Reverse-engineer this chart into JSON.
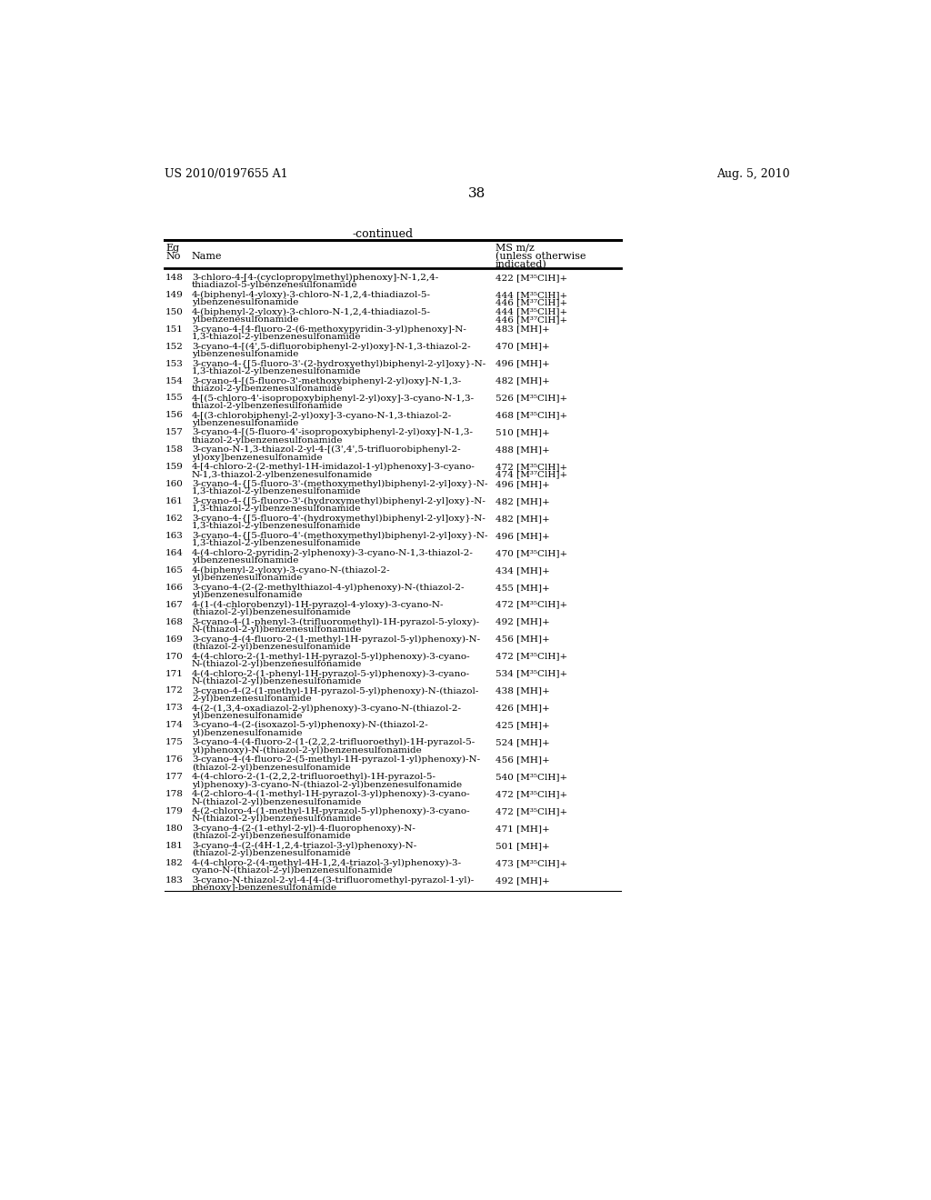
{
  "header_left": "US 2010/0197655 A1",
  "header_right": "Aug. 5, 2010",
  "page_number": "38",
  "continued_label": "-continued",
  "rows": [
    [
      "148",
      "3-chloro-4-[4-(cyclopropylmethyl)phenoxy]-N-1,2,4-\nthiadiazol-5-ylbenzenesulfonamide",
      "422 [M³⁵ClH]+"
    ],
    [
      "149",
      "4-(biphenyl-4-yloxy)-3-chloro-N-1,2,4-thiadiazol-5-\nylbenzenesulfonamide",
      "444 [M³⁵ClH]+\n446 [M³⁷ClH]+"
    ],
    [
      "150",
      "4-(biphenyl-2-yloxy)-3-chloro-N-1,2,4-thiadiazol-5-\nylbenzenesulfonamide",
      "444 [M³⁵ClH]+\n446 [M³⁷ClH]+"
    ],
    [
      "151",
      "3-cyano-4-[4-fluoro-2-(6-methoxypyridin-3-yl)phenoxy]-N-\n1,3-thiazol-2-ylbenzenesulfonamide",
      "483 [MH]+"
    ],
    [
      "152",
      "3-cyano-4-[(4',5-difluorobiphenyl-2-yl)oxy]-N-1,3-thiazol-2-\nylbenzenesulfonamide",
      "470 [MH]+"
    ],
    [
      "153",
      "3-cyano-4-{[5-fluoro-3'-(2-hydroxyethyl)biphenyl-2-yl]oxy}-N-\n1,3-thiazol-2-ylbenzenesulfonamide",
      "496 [MH]+"
    ],
    [
      "154",
      "3-cyano-4-[(5-fluoro-3'-methoxybiphenyl-2-yl)oxy]-N-1,3-\nthiazol-2-ylbenzenesulfonamide",
      "482 [MH]+"
    ],
    [
      "155",
      "4-[(5-chloro-4'-isopropoxybiphenyl-2-yl)oxy]-3-cyano-N-1,3-\nthiazol-2-ylbenzenesulfonamide",
      "526 [M³⁵ClH]+"
    ],
    [
      "156",
      "4-[(3-chlorobiphenyl-2-yl)oxy]-3-cyano-N-1,3-thiazol-2-\nylbenzenesulfonamide",
      "468 [M³⁵ClH]+"
    ],
    [
      "157",
      "3-cyano-4-[(5-fluoro-4'-isopropoxybiphenyl-2-yl)oxy]-N-1,3-\nthiazol-2-ylbenzenesulfonamide",
      "510 [MH]+"
    ],
    [
      "158",
      "3-cyano-N-1,3-thiazol-2-yl-4-[(3',4',5-trifluorobiphenyl-2-\nyl)oxy]benzenesulfonamide",
      "488 [MH]+"
    ],
    [
      "159",
      "4-[4-chloro-2-(2-methyl-1H-imidazol-1-yl)phenoxy]-3-cyano-\nN-1,3-thiazol-2-ylbenzenesulfonamide",
      "472 [M³⁵ClH]+\n474 [M³⁷ClH]+"
    ],
    [
      "160",
      "3-cyano-4-{[5-fluoro-3'-(methoxymethyl)biphenyl-2-yl]oxy}-N-\n1,3-thiazol-2-ylbenzenesulfonamide",
      "496 [MH]+"
    ],
    [
      "161",
      "3-cyano-4-{[5-fluoro-3'-(hydroxymethyl)biphenyl-2-yl]oxy}-N-\n1,3-thiazol-2-ylbenzenesulfonamide",
      "482 [MH]+"
    ],
    [
      "162",
      "3-cyano-4-{[5-fluoro-4'-(hydroxymethyl)biphenyl-2-yl]oxy}-N-\n1,3-thiazol-2-ylbenzenesulfonamide",
      "482 [MH]+"
    ],
    [
      "163",
      "3-cyano-4-{[5-fluoro-4'-(methoxymethyl)biphenyl-2-yl]oxy}-N-\n1,3-thiazol-2-ylbenzenesulfonamide",
      "496 [MH]+"
    ],
    [
      "164",
      "4-(4-chloro-2-pyridin-2-ylphenoxy)-3-cyano-N-1,3-thiazol-2-\nylbenzenesulfonamide",
      "470 [M³⁵ClH]+"
    ],
    [
      "165",
      "4-(biphenyl-2-yloxy)-3-cyano-N-(thiazol-2-\nyl)benzenesulfonamide",
      "434 [MH]+"
    ],
    [
      "166",
      "3-cyano-4-(2-(2-methylthiazol-4-yl)phenoxy)-N-(thiazol-2-\nyl)benzenesulfonamide",
      "455 [MH]+"
    ],
    [
      "167",
      "4-(1-(4-chlorobenzyl)-1H-pyrazol-4-yloxy)-3-cyano-N-\n(thiazol-2-yl)benzenesulfonamide",
      "472 [M³⁵ClH]+"
    ],
    [
      "168",
      "3-cyano-4-(1-phenyl-3-(trifluoromethyl)-1H-pyrazol-5-yloxy)-\nN-(thiazol-2-yl)benzenesulfonamide",
      "492 [MH]+"
    ],
    [
      "169",
      "3-cyano-4-(4-fluoro-2-(1-methyl-1H-pyrazol-5-yl)phenoxy)-N-\n(thiazol-2-yl)benzenesulfonamide",
      "456 [MH]+"
    ],
    [
      "170",
      "4-(4-chloro-2-(1-methyl-1H-pyrazol-5-yl)phenoxy)-3-cyano-\nN-(thiazol-2-yl)benzenesulfonamide",
      "472 [M³⁵ClH]+"
    ],
    [
      "171",
      "4-(4-chloro-2-(1-phenyl-1H-pyrazol-5-yl)phenoxy)-3-cyano-\nN-(thiazol-2-yl)benzenesulfonamide",
      "534 [M³⁵ClH]+"
    ],
    [
      "172",
      "3-cyano-4-(2-(1-methyl-1H-pyrazol-5-yl)phenoxy)-N-(thiazol-\n2-yl)benzenesulfonamide",
      "438 [MH]+"
    ],
    [
      "173",
      "4-(2-(1,3,4-oxadiazol-2-yl)phenoxy)-3-cyano-N-(thiazol-2-\nyl)benzenesulfonamide",
      "426 [MH]+"
    ],
    [
      "174",
      "3-cyano-4-(2-(isoxazol-5-yl)phenoxy)-N-(thiazol-2-\nyl)benzenesulfonamide",
      "425 [MH]+"
    ],
    [
      "175",
      "3-cyano-4-(4-fluoro-2-(1-(2,2,2-trifluoroethyl)-1H-pyrazol-5-\nyl)phenoxy)-N-(thiazol-2-yl)benzenesulfonamide",
      "524 [MH]+"
    ],
    [
      "176",
      "3-cyano-4-(4-fluoro-2-(5-methyl-1H-pyrazol-1-yl)phenoxy)-N-\n(thiazol-2-yl)benzenesulfonamide",
      "456 [MH]+"
    ],
    [
      "177",
      "4-(4-chloro-2-(1-(2,2,2-trifluoroethyl)-1H-pyrazol-5-\nyl)phenoxy)-3-cyano-N-(thiazol-2-yl)benzenesulfonamide",
      "540 [M³⁵ClH]+"
    ],
    [
      "178",
      "4-(2-chloro-4-(1-methyl-1H-pyrazol-3-yl)phenoxy)-3-cyano-\nN-(thiazol-2-yl)benzenesulfonamide",
      "472 [M³⁵ClH]+"
    ],
    [
      "179",
      "4-(2-chloro-4-(1-methyl-1H-pyrazol-5-yl)phenoxy)-3-cyano-\nN-(thiazol-2-yl)benzenesulfonamide",
      "472 [M³⁵ClH]+"
    ],
    [
      "180",
      "3-cyano-4-(2-(1-ethyl-2-yl)-4-fluorophenoxy)-N-\n(thiazol-2-yl)benzenesulfonamide",
      "471 [MH]+"
    ],
    [
      "181",
      "3-cyano-4-(2-(4H-1,2,4-triazol-3-yl)phenoxy)-N-\n(thiazol-2-yl)benzenesulfonamide",
      "501 [MH]+"
    ],
    [
      "182",
      "4-(4-chloro-2-(4-methyl-4H-1,2,4-triazol-3-yl)phenoxy)-3-\ncyano-N-(thiazol-2-yl)benzenesulfonamide",
      "473 [M³⁵ClH]+"
    ],
    [
      "183",
      "3-cyano-N-thiazol-2-yl-4-[4-(3-trifluoromethyl-pyrazol-1-yl)-\nphenoxy]-benzenesulfonamide",
      "492 [MH]+"
    ]
  ]
}
